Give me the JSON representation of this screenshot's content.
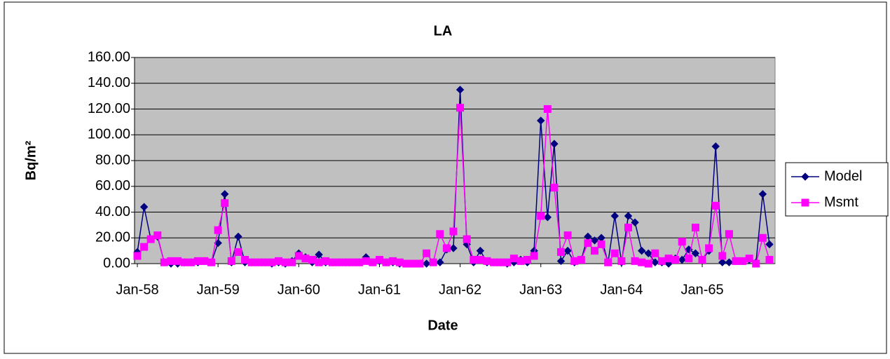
{
  "chart_data": {
    "type": "line",
    "title": "LA",
    "x_label": "Date",
    "y_label": "Bq/m²",
    "categories": [
      "Jan-58",
      null,
      null,
      null,
      null,
      null,
      null,
      null,
      null,
      null,
      null,
      null,
      "Jan-59",
      null,
      null,
      null,
      null,
      null,
      null,
      null,
      null,
      null,
      null,
      null,
      "Jan-60",
      null,
      null,
      null,
      null,
      null,
      null,
      null,
      null,
      null,
      null,
      null,
      "Jan-61",
      null,
      null,
      null,
      null,
      null,
      null,
      null,
      null,
      null,
      null,
      null,
      "Jan-62",
      null,
      null,
      null,
      null,
      null,
      null,
      null,
      null,
      null,
      null,
      null,
      "Jan-63",
      null,
      null,
      null,
      null,
      null,
      null,
      null,
      null,
      null,
      null,
      null,
      "Jan-64",
      null,
      null,
      null,
      null,
      null,
      null,
      null,
      null,
      null,
      null,
      null,
      "Jan-65",
      null,
      null,
      null,
      null,
      null,
      null,
      null,
      null,
      null,
      null
    ],
    "series": [
      {
        "name": "Model",
        "color": "#000080",
        "marker": "diamond",
        "values": [
          9,
          44,
          19,
          21,
          1,
          0,
          0,
          1,
          1,
          1,
          2,
          1,
          16,
          54,
          1,
          21,
          1,
          1,
          1,
          1,
          0,
          1,
          0,
          2,
          8,
          5,
          1,
          7,
          1,
          1,
          1,
          1,
          1,
          1,
          5,
          1,
          2,
          1,
          1,
          0,
          0,
          0,
          0,
          0,
          1,
          1,
          11,
          12,
          135,
          15,
          1,
          10,
          1,
          1,
          1,
          0,
          1,
          3,
          1,
          10,
          111,
          36,
          93,
          2,
          10,
          1,
          3,
          21,
          18,
          20,
          1,
          37,
          1,
          37,
          32,
          10,
          8,
          1,
          1,
          0,
          4,
          3,
          11,
          8,
          3,
          10,
          91,
          1,
          1,
          2,
          2,
          3,
          1,
          54,
          15
        ]
      },
      {
        "name": "Msmt",
        "color": "#ff00ff",
        "marker": "square",
        "values": [
          6,
          13,
          19,
          22,
          1,
          2,
          2,
          1,
          1,
          2,
          2,
          1,
          26,
          47,
          2,
          9,
          3,
          1,
          1,
          1,
          1,
          2,
          1,
          1,
          6,
          4,
          3,
          1,
          2,
          1,
          1,
          1,
          1,
          1,
          2,
          1,
          3,
          1,
          2,
          1,
          0,
          0,
          0,
          8,
          1,
          23,
          12,
          25,
          121,
          19,
          3,
          3,
          2,
          1,
          1,
          1,
          4,
          2,
          3,
          6,
          37,
          120,
          59,
          9,
          22,
          2,
          3,
          16,
          10,
          15,
          1,
          8,
          2,
          28,
          2,
          1,
          0,
          8,
          2,
          4,
          3,
          17,
          4,
          28,
          3,
          12,
          45,
          6,
          23,
          2,
          2,
          4,
          0,
          20,
          3
        ]
      }
    ],
    "ylim": [
      0,
      160
    ],
    "yticks": [
      {
        "value": 0,
        "label": "0.00"
      },
      {
        "value": 20,
        "label": "20.00"
      },
      {
        "value": 40,
        "label": "40.00"
      },
      {
        "value": 60,
        "label": "60.00"
      },
      {
        "value": 80,
        "label": "80.00"
      },
      {
        "value": 100,
        "label": "100.00"
      },
      {
        "value": 120,
        "label": "120.00"
      },
      {
        "value": 140,
        "label": "140.00"
      },
      {
        "value": 160,
        "label": "160.00"
      }
    ],
    "grid": true,
    "plot_background": "#c0c0c0",
    "legend": "right"
  }
}
